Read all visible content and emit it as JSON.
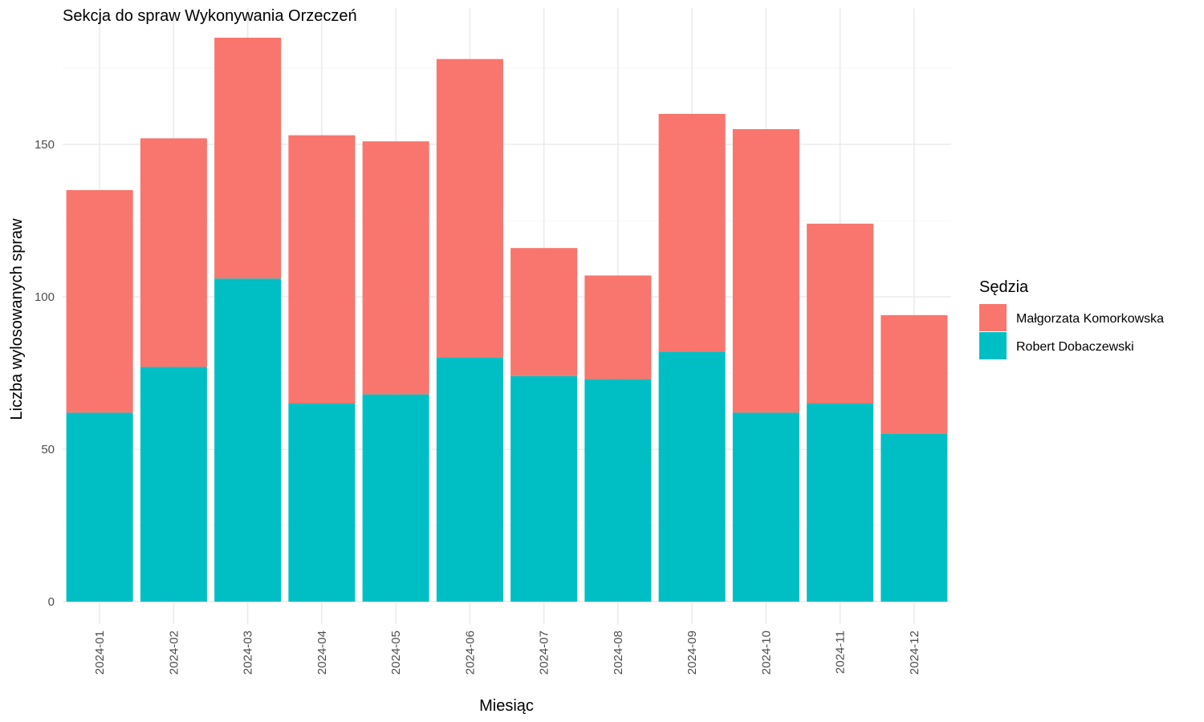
{
  "chart_data": {
    "type": "bar",
    "stacked": true,
    "title": "Sekcja do spraw Wykonywania Orzeczeń",
    "xlabel": "Miesiąc",
    "ylabel": "Liczba wylosowanych spraw",
    "ylim": [
      0,
      195
    ],
    "yticks": [
      0,
      50,
      100,
      150
    ],
    "grid": true,
    "legend": {
      "title": "Sędzia",
      "position": "right"
    },
    "categories": [
      "2024-01",
      "2024-02",
      "2024-03",
      "2024-04",
      "2024-05",
      "2024-06",
      "2024-07",
      "2024-08",
      "2024-09",
      "2024-10",
      "2024-11",
      "2024-12"
    ],
    "series": [
      {
        "name": "Robert Dobaczewski",
        "color": "#00BFC4",
        "values": [
          62,
          77,
          106,
          65,
          68,
          80,
          74,
          73,
          82,
          62,
          65,
          55
        ]
      },
      {
        "name": "Małgorzata Komorkowska",
        "color": "#F8766D",
        "values": [
          73,
          75,
          79,
          88,
          83,
          98,
          42,
          34,
          78,
          93,
          59,
          39
        ]
      }
    ],
    "legend_order": [
      "Małgorzata Komorkowska",
      "Robert Dobaczewski"
    ]
  }
}
